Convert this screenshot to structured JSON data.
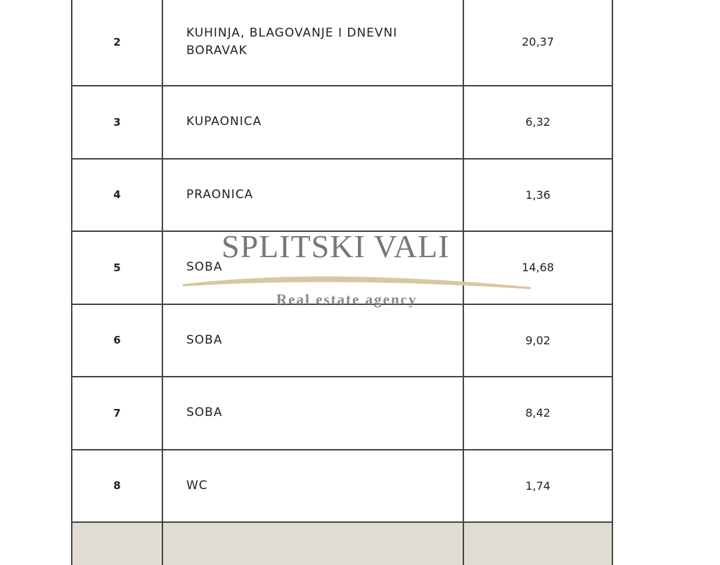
{
  "rows": [
    {
      "no": "2",
      "room": "KUHINJA, BLAGOVANJE I DNEVNI BORAVAK",
      "area": "20,37"
    },
    {
      "no": "3",
      "room": "KUPAONICA",
      "area": "6,32"
    },
    {
      "no": "4",
      "room": "PRAONICA",
      "area": "1,36"
    },
    {
      "no": "5",
      "room": "SOBA",
      "area": "14,68"
    },
    {
      "no": "6",
      "room": "SOBA",
      "area": "9,02"
    },
    {
      "no": "7",
      "room": "SOBA",
      "area": "8,42"
    },
    {
      "no": "8",
      "room": "WC",
      "area": "1,74"
    }
  ],
  "watermark": {
    "name": "SPLITSKI VALI",
    "tagline": "Real estate agency",
    "swoosh_color": "#d8c7a0"
  },
  "colors": {
    "total_row_bg": "#e0dcd2",
    "border": "#444444"
  }
}
